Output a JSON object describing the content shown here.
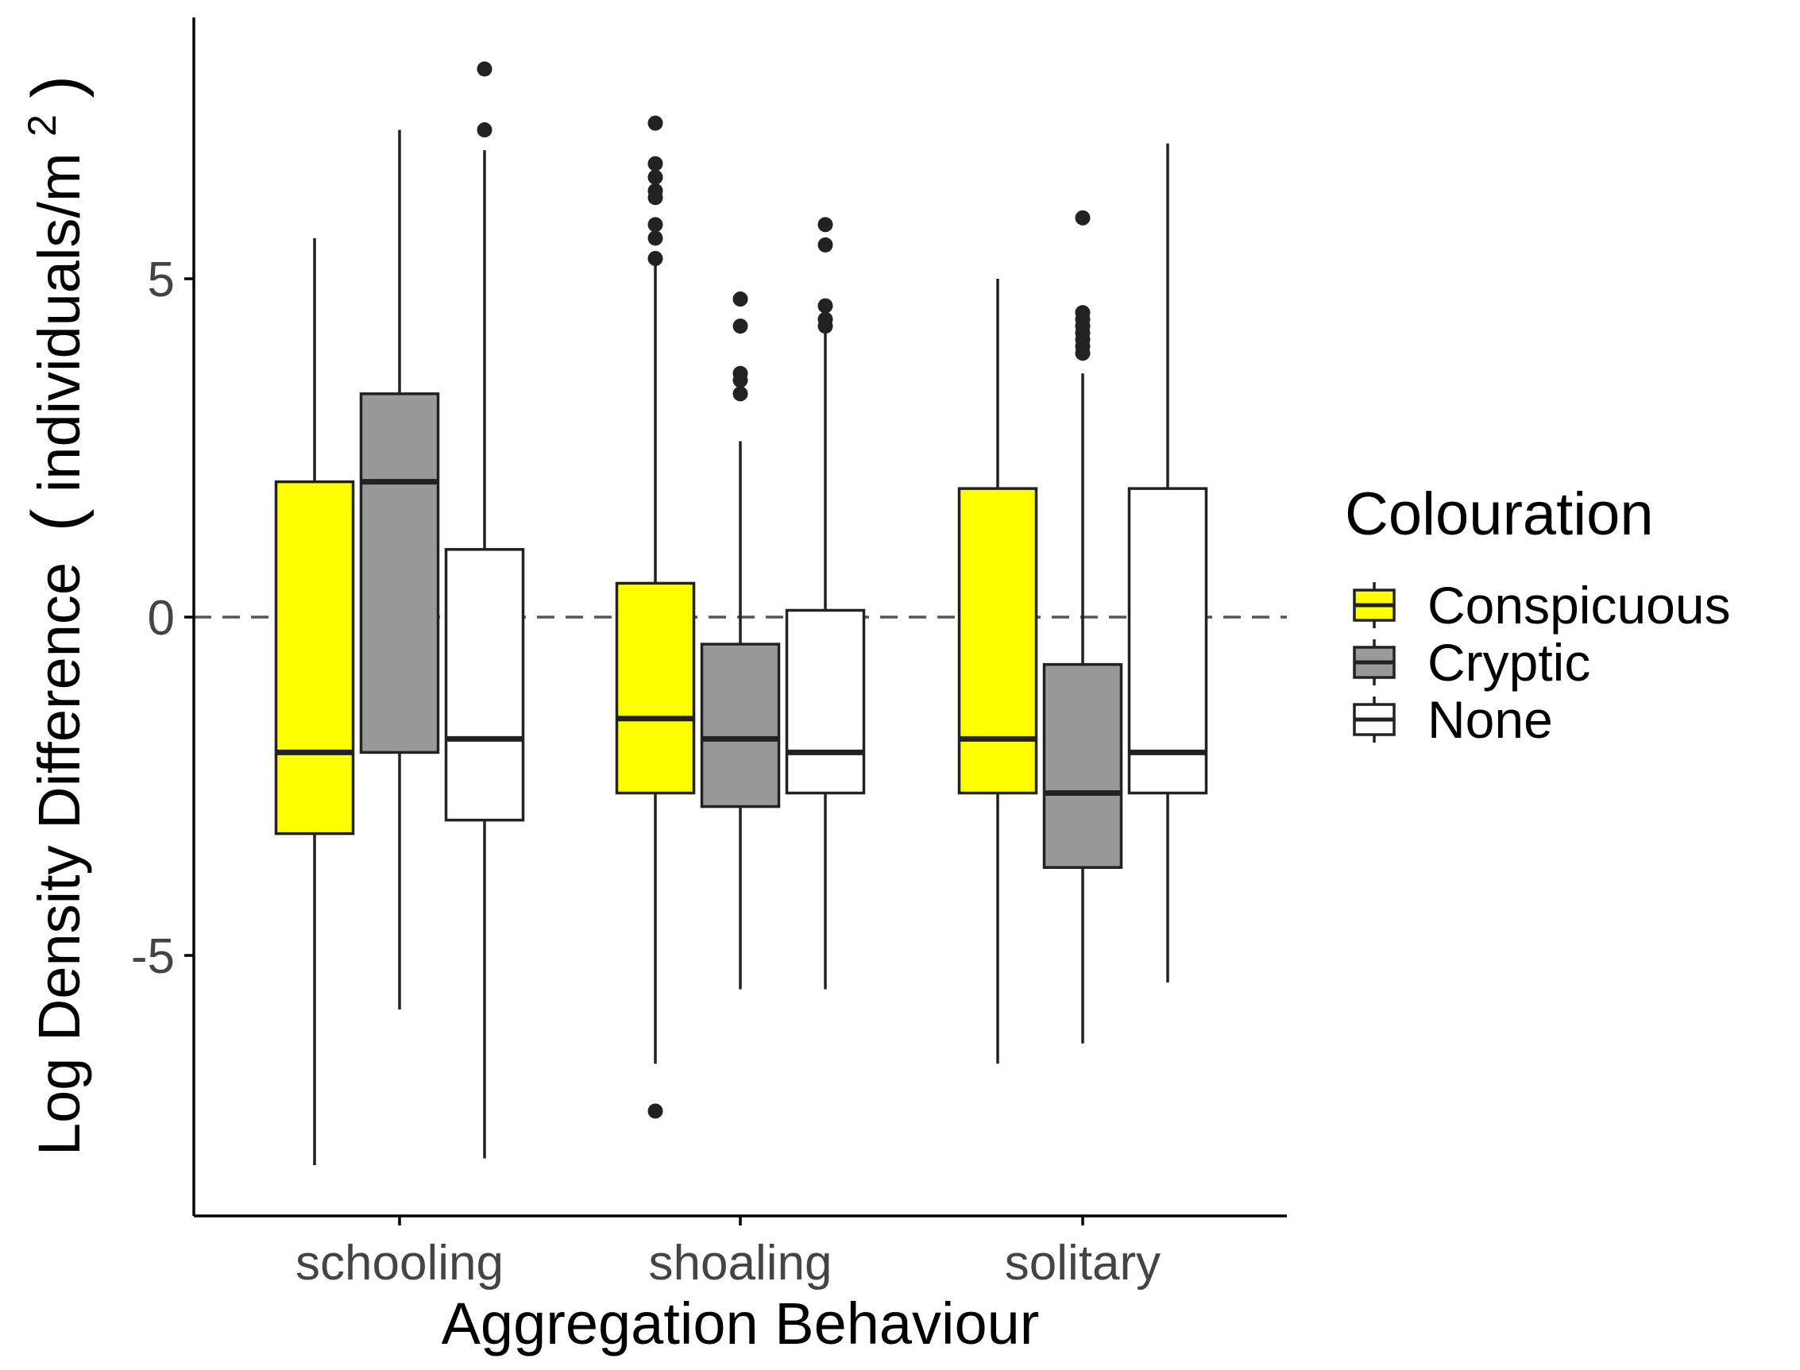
{
  "chart_data": {
    "type": "box",
    "xlabel": "Aggregation Behaviour",
    "ylabel_parts": [
      "Log Density Difference",
      "(",
      "individuals/m",
      "2",
      ")"
    ],
    "ylim": [
      -8.9,
      8.9
    ],
    "yticks": [
      {
        "value": 5,
        "label": "5"
      },
      {
        "value": 0,
        "label": "0"
      },
      {
        "value": -5,
        "label": "-5"
      }
    ],
    "reference_line": {
      "value": 0,
      "style": "dashed",
      "color": "#555555"
    },
    "grid": false,
    "categories": [
      "schooling",
      "shoaling",
      "solitary"
    ],
    "legend": {
      "title": "Colouration",
      "placement": "right",
      "entries": [
        {
          "name": "Conspicuous",
          "color": "#FFFF00"
        },
        {
          "name": "Cryptic",
          "color": "#999999"
        },
        {
          "name": "None",
          "color": "#FFFFFF"
        }
      ]
    },
    "series": [
      {
        "name": "Conspicuous",
        "color": "#FFFF00",
        "boxes": [
          {
            "category": "schooling",
            "whisker_low": -8.1,
            "q1": -3.2,
            "median": -2.0,
            "q3": 2.0,
            "whisker_high": 5.6,
            "outliers": []
          },
          {
            "category": "shoaling",
            "whisker_low": -6.6,
            "q1": -2.6,
            "median": -1.5,
            "q3": 0.5,
            "whisker_high": 5.2,
            "outliers": [
              -7.3,
              5.3,
              5.6,
              5.8,
              6.2,
              6.3,
              6.5,
              6.7,
              7.3
            ]
          },
          {
            "category": "solitary",
            "whisker_low": -6.6,
            "q1": -2.6,
            "median": -1.8,
            "q3": 1.9,
            "whisker_high": 5.0,
            "outliers": []
          }
        ]
      },
      {
        "name": "Cryptic",
        "color": "#999999",
        "boxes": [
          {
            "category": "schooling",
            "whisker_low": -5.8,
            "q1": -2.0,
            "median": 2.0,
            "q3": 3.3,
            "whisker_high": 7.2,
            "outliers": []
          },
          {
            "category": "shoaling",
            "whisker_low": -5.5,
            "q1": -2.8,
            "median": -1.8,
            "q3": -0.4,
            "whisker_high": 2.6,
            "outliers": [
              3.3,
              3.5,
              3.6,
              4.3,
              4.7
            ]
          },
          {
            "category": "solitary",
            "whisker_low": -6.3,
            "q1": -3.7,
            "median": -2.6,
            "q3": -0.7,
            "whisker_high": 3.6,
            "outliers": [
              3.9,
              4.0,
              4.1,
              4.2,
              4.3,
              4.4,
              4.5,
              5.9
            ]
          }
        ]
      },
      {
        "name": "None",
        "color": "#FFFFFF",
        "boxes": [
          {
            "category": "schooling",
            "whisker_low": -8.0,
            "q1": -3.0,
            "median": -1.8,
            "q3": 1.0,
            "whisker_high": 6.9,
            "outliers": [
              7.2,
              8.1
            ]
          },
          {
            "category": "shoaling",
            "whisker_low": -5.5,
            "q1": -2.6,
            "median": -2.0,
            "q3": 0.1,
            "whisker_high": 4.2,
            "outliers": [
              4.3,
              4.4,
              4.6,
              5.5,
              5.8
            ]
          },
          {
            "category": "solitary",
            "whisker_low": -5.4,
            "q1": -2.6,
            "median": -2.0,
            "q3": 1.9,
            "whisker_high": 7.0,
            "outliers": []
          }
        ]
      }
    ]
  }
}
